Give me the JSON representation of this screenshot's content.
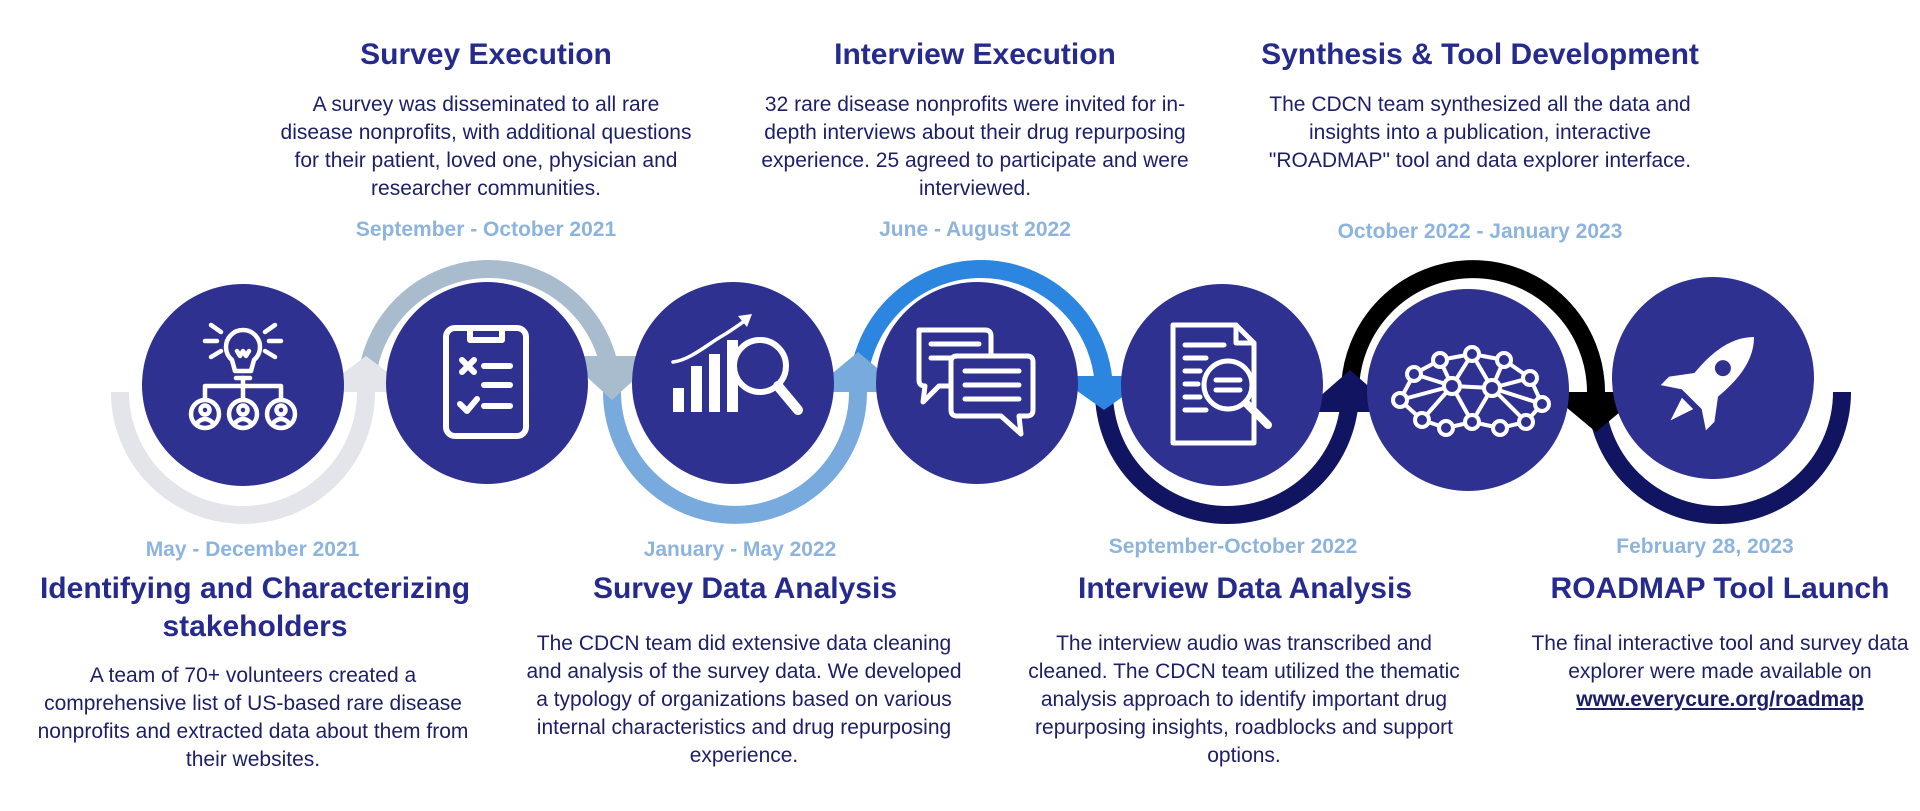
{
  "colors": {
    "circle": "#2f3191",
    "title": "#262a8c",
    "date": "#8db4dd",
    "text": "#1c1f66",
    "arc_grey": "#e4e5ea",
    "arc_steel": "#a9bccd",
    "arc_lightblue": "#79aadd",
    "arc_blue": "#2c86df",
    "arc_navy": "#111561",
    "arc_black": "#000000"
  },
  "steps": [
    {
      "title": "Identifying and Characterizing stakeholders",
      "date": "May - December 2021",
      "desc": "A team of 70+ volunteers created a comprehensive list of US-based rare disease nonprofits and extracted data about them from their websites.",
      "icon": "lightbulb-network-icon"
    },
    {
      "title": "Survey Execution",
      "date": "September - October 2021",
      "desc": "A survey was disseminated to all rare disease nonprofits, with additional questions for their patient, loved one, physician and researcher communities.",
      "icon": "clipboard-checklist-icon"
    },
    {
      "title": "Survey Data Analysis",
      "date": "January - May 2022",
      "desc": "The CDCN team did extensive data cleaning and analysis of the survey data. We developed a typology of organizations based on various internal characteristics and drug repurposing experience.",
      "icon": "chart-magnifier-icon"
    },
    {
      "title": "Interview Execution",
      "date": "June - August 2022",
      "desc": "32 rare disease nonprofits were invited for in-depth interviews about their drug repurposing experience. 25 agreed to participate and were interviewed.",
      "icon": "chat-bubbles-icon"
    },
    {
      "title": "Interview Data Analysis",
      "date": "September-October 2022",
      "desc": "The interview audio was transcribed and cleaned. The CDCN team utilized the thematic analysis approach to identify important drug repurposing insights, roadblocks and support options.",
      "icon": "document-search-icon"
    },
    {
      "title": "Synthesis & Tool Development",
      "date": "October 2022 - January 2023",
      "desc": "The CDCN team synthesized all the data and insights into a publication, interactive \"ROADMAP\" tool and data explorer interface.",
      "icon": "network-brain-icon"
    },
    {
      "title": "ROADMAP Tool Launch",
      "date": "February 28, 2023",
      "desc_prefix": "The final interactive tool and survey data explorer were made available on ",
      "link_text": "www.everycure.org/roadmap",
      "icon": "rocket-icon"
    }
  ]
}
